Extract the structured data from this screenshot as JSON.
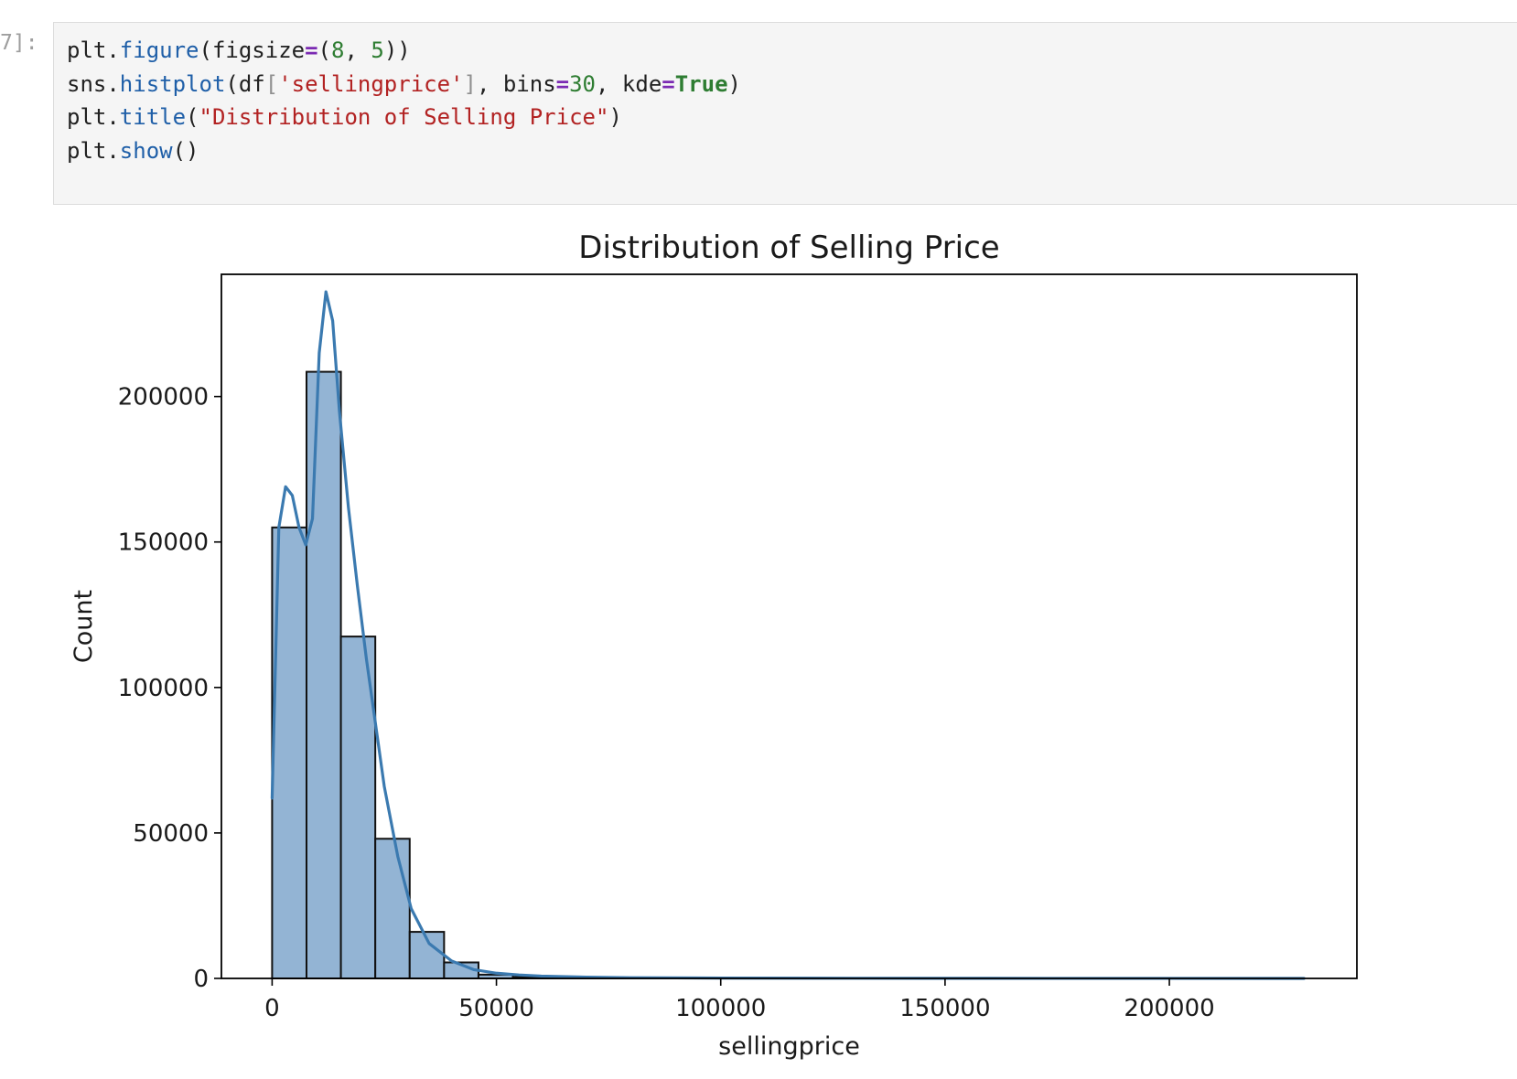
{
  "cell": {
    "prompt": "7]:",
    "lines": [
      [
        {
          "t": "plt.",
          "c": ""
        },
        {
          "t": "figure",
          "c": "fn"
        },
        {
          "t": "(figsize",
          "c": ""
        },
        {
          "t": "=",
          "c": "op"
        },
        {
          "t": "(",
          "c": ""
        },
        {
          "t": "8",
          "c": "num"
        },
        {
          "t": ", ",
          "c": ""
        },
        {
          "t": "5",
          "c": "num"
        },
        {
          "t": "))",
          "c": ""
        }
      ],
      [
        {
          "t": "sns.",
          "c": ""
        },
        {
          "t": "histplot",
          "c": "fn"
        },
        {
          "t": "(df",
          "c": ""
        },
        {
          "t": "[",
          "c": "br"
        },
        {
          "t": "'sellingprice'",
          "c": "str"
        },
        {
          "t": "]",
          "c": "br"
        },
        {
          "t": ", bins",
          "c": ""
        },
        {
          "t": "=",
          "c": "op"
        },
        {
          "t": "30",
          "c": "num"
        },
        {
          "t": ", kde",
          "c": ""
        },
        {
          "t": "=",
          "c": "op"
        },
        {
          "t": "True",
          "c": "kw"
        },
        {
          "t": ")",
          "c": ""
        }
      ],
      [
        {
          "t": "plt.",
          "c": ""
        },
        {
          "t": "title",
          "c": "fn"
        },
        {
          "t": "(",
          "c": ""
        },
        {
          "t": "\"Distribution of Selling Price\"",
          "c": "str"
        },
        {
          "t": ")",
          "c": ""
        }
      ],
      [
        {
          "t": "plt.",
          "c": ""
        },
        {
          "t": "show",
          "c": "fn"
        },
        {
          "t": "()",
          "c": ""
        }
      ]
    ]
  },
  "chart_data": {
    "type": "bar",
    "title": "Distribution of Selling Price",
    "xlabel": "sellingprice",
    "ylabel": "Count",
    "xlim": [
      -11300,
      241800
    ],
    "ylim": [
      0,
      242000
    ],
    "xticks": [
      0,
      50000,
      100000,
      150000,
      200000
    ],
    "yticks": [
      0,
      50000,
      100000,
      150000,
      200000
    ],
    "grid": false,
    "bin_edges": [
      0,
      7667,
      15333,
      23000,
      30667,
      38333,
      46000,
      53667,
      61333,
      69000,
      76667,
      84333,
      92000,
      99667,
      107333,
      115000,
      122667,
      130333,
      138000,
      145667,
      153333,
      161000,
      168667,
      176333,
      184000,
      191667,
      199333,
      207000,
      214667,
      222333,
      230000
    ],
    "counts": [
      155000,
      208500,
      117500,
      48000,
      16000,
      5500,
      1300,
      500,
      200,
      120,
      80,
      60,
      40,
      30,
      20,
      15,
      12,
      10,
      8,
      6,
      5,
      4,
      3,
      3,
      2,
      2,
      2,
      1,
      1,
      1
    ],
    "kde": {
      "x": [
        0,
        1500,
        3000,
        4500,
        6000,
        7500,
        9000,
        10500,
        12000,
        13500,
        15000,
        17000,
        19000,
        21000,
        23000,
        25000,
        28000,
        31000,
        35000,
        40000,
        45000,
        50000,
        55000,
        60000,
        70000,
        80000,
        100000,
        130000,
        160000,
        190000,
        230000
      ],
      "y": [
        62000,
        155000,
        169000,
        166000,
        155000,
        149000,
        158000,
        215000,
        236000,
        226000,
        195000,
        162000,
        135000,
        110000,
        88000,
        66000,
        42000,
        24000,
        12000,
        6000,
        3000,
        1800,
        1200,
        800,
        450,
        260,
        120,
        60,
        30,
        15,
        5
      ]
    },
    "bar_fill": "#93b4d4",
    "bar_edge": "#111111",
    "kde_color": "#3b7ab0"
  }
}
